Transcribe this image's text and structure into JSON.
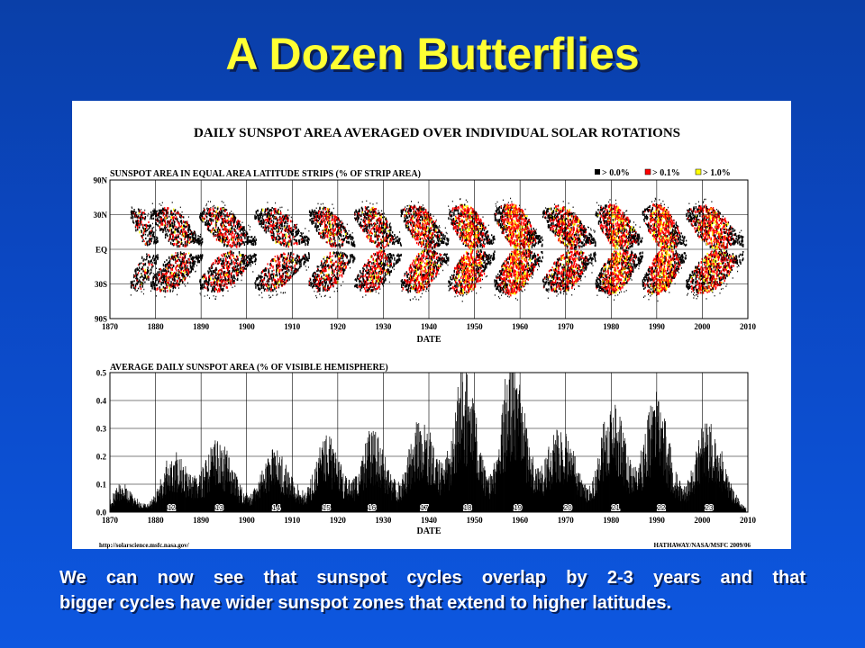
{
  "slide": {
    "title": "A Dozen Butterflies",
    "caption_line1": "We can now see that sunspot cycles overlap by 2-3 years and that",
    "caption_line2": "bigger cycles have wider sunspot zones that extend to higher latitudes."
  },
  "figure": {
    "main_title": "DAILY SUNSPOT AREA AVERAGED OVER INDIVIDUAL SOLAR ROTATIONS",
    "source_url": "http://solarscience.msfc.nasa.gov/",
    "credit": "HATHAWAY/NASA/MSFC 2009/06"
  },
  "colors": {
    "background_top": "#0a3fa8",
    "background_bottom": "#0d57e0",
    "title": "#ffff33",
    "level_gt_0": "#000000",
    "level_gt_01": "#ff0000",
    "level_gt_1": "#ffff00",
    "bars": "#000000"
  },
  "chart_data": [
    {
      "type": "heatmap",
      "title": "SUNSPOT AREA IN EQUAL AREA LATITUDE STRIPS (% OF STRIP AREA)",
      "xlabel": "DATE",
      "ylabel": "",
      "xlim": [
        1870,
        2010
      ],
      "x_ticks": [
        1870,
        1880,
        1890,
        1900,
        1910,
        1920,
        1930,
        1940,
        1950,
        1960,
        1970,
        1980,
        1990,
        2000,
        2010
      ],
      "y_ticks": [
        "90N",
        "30N",
        "EQ",
        "30S",
        "90S"
      ],
      "legend": [
        {
          "label": "> 0.0%",
          "color": "#000000"
        },
        {
          "label": "> 0.1%",
          "color": "#ff0000"
        },
        {
          "label": "> 1.0%",
          "color": "#ffff00"
        }
      ],
      "legend_position": "top-right",
      "grid": true,
      "cycles": [
        {
          "start": 1874.5,
          "end": 1880.5,
          "intensity": 0.35
        },
        {
          "start": 1878.9,
          "end": 1890.2,
          "intensity": 0.55
        },
        {
          "start": 1889.6,
          "end": 1902.0,
          "intensity": 0.6
        },
        {
          "start": 1901.7,
          "end": 1913.6,
          "intensity": 0.5
        },
        {
          "start": 1913.6,
          "end": 1923.6,
          "intensity": 0.6
        },
        {
          "start": 1923.6,
          "end": 1933.8,
          "intensity": 0.65
        },
        {
          "start": 1933.8,
          "end": 1944.2,
          "intensity": 0.8
        },
        {
          "start": 1944.2,
          "end": 1954.3,
          "intensity": 0.9
        },
        {
          "start": 1954.3,
          "end": 1964.9,
          "intensity": 1.0
        },
        {
          "start": 1964.9,
          "end": 1976.5,
          "intensity": 0.75
        },
        {
          "start": 1976.5,
          "end": 1986.8,
          "intensity": 0.9
        },
        {
          "start": 1986.8,
          "end": 1996.4,
          "intensity": 0.95
        },
        {
          "start": 1996.4,
          "end": 2008.9,
          "intensity": 0.8
        }
      ]
    },
    {
      "type": "bar",
      "title": "AVERAGE DAILY SUNSPOT AREA (% OF VISIBLE HEMISPHERE)",
      "xlabel": "DATE",
      "ylabel": "",
      "xlim": [
        1870,
        2010
      ],
      "ylim": [
        0.0,
        0.5
      ],
      "x_ticks": [
        1870,
        1880,
        1890,
        1900,
        1910,
        1920,
        1930,
        1940,
        1950,
        1960,
        1970,
        1980,
        1990,
        2000,
        2010
      ],
      "y_ticks": [
        "0.0",
        "0.1",
        "0.2",
        "0.3",
        "0.4",
        "0.5"
      ],
      "grid": true,
      "cycle_numbers": [
        {
          "label": "12",
          "year": 1883.5
        },
        {
          "label": "13",
          "year": 1894.0
        },
        {
          "label": "14",
          "year": 1906.5
        },
        {
          "label": "15",
          "year": 1917.5
        },
        {
          "label": "16",
          "year": 1927.5
        },
        {
          "label": "17",
          "year": 1939.0
        },
        {
          "label": "18",
          "year": 1948.5
        },
        {
          "label": "19",
          "year": 1959.5
        },
        {
          "label": "20",
          "year": 1970.5
        },
        {
          "label": "21",
          "year": 1981.0
        },
        {
          "label": "22",
          "year": 1991.0
        },
        {
          "label": "23",
          "year": 2001.5
        }
      ],
      "cycle_peaks": [
        {
          "year": 1872.5,
          "value": 0.09,
          "sigma": 2.0
        },
        {
          "year": 1883.8,
          "value": 0.19,
          "sigma": 2.6
        },
        {
          "year": 1893.5,
          "value": 0.23,
          "sigma": 2.6
        },
        {
          "year": 1906.0,
          "value": 0.2,
          "sigma": 2.8
        },
        {
          "year": 1917.5,
          "value": 0.24,
          "sigma": 2.4
        },
        {
          "year": 1927.5,
          "value": 0.26,
          "sigma": 2.4
        },
        {
          "year": 1938.0,
          "value": 0.31,
          "sigma": 2.4
        },
        {
          "year": 1947.5,
          "value": 0.45,
          "sigma": 2.3
        },
        {
          "year": 1958.0,
          "value": 0.5,
          "sigma": 2.2
        },
        {
          "year": 1968.5,
          "value": 0.27,
          "sigma": 2.8
        },
        {
          "year": 1980.0,
          "value": 0.37,
          "sigma": 2.2
        },
        {
          "year": 1989.5,
          "value": 0.38,
          "sigma": 2.3
        },
        {
          "year": 2001.0,
          "value": 0.29,
          "sigma": 2.6
        }
      ]
    }
  ]
}
